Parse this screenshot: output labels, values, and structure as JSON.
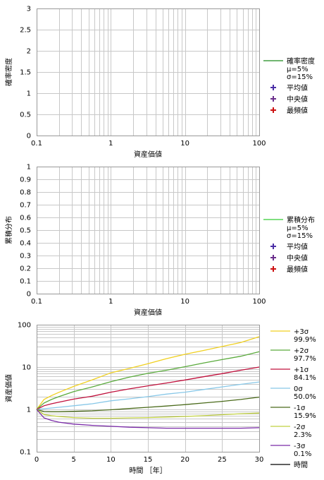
{
  "chart_data": [
    {
      "type": "line",
      "xscale": "log",
      "xlim": [
        0.1,
        100
      ],
      "ylim": [
        0,
        3
      ],
      "xticks": [
        "0.1",
        "1",
        "10",
        "100"
      ],
      "yticks": [
        "0",
        "0.5",
        "1",
        "1.5",
        "2",
        "2.5",
        "3"
      ],
      "xlabel": "資産価値",
      "ylabel": "確率密度",
      "grid": true,
      "legend_position": "right",
      "legend": [
        {
          "kind": "line",
          "color": "#1a8a1a",
          "lines": [
            "確率密度",
            "μ=5%",
            "σ=15%"
          ]
        },
        {
          "kind": "marker",
          "color": "#4b2fa6",
          "lines": [
            "平均値"
          ]
        },
        {
          "kind": "marker",
          "color": "#6b2f8c",
          "lines": [
            "中央値"
          ]
        },
        {
          "kind": "marker",
          "color": "#cc1111",
          "lines": [
            "最頻値"
          ]
        }
      ],
      "series": []
    },
    {
      "type": "line",
      "xscale": "log",
      "xlim": [
        0.1,
        100
      ],
      "ylim": [
        0,
        1
      ],
      "xticks": [
        "0.1",
        "1",
        "10",
        "100"
      ],
      "yticks": [
        "0",
        "0.1",
        "0.2",
        "0.3",
        "0.4",
        "0.5",
        "0.6",
        "0.7",
        "0.8",
        "0.9",
        "1"
      ],
      "xlabel": "資産価値",
      "ylabel": "累積分布",
      "grid": true,
      "legend_position": "right",
      "legend": [
        {
          "kind": "line",
          "color": "#33cc33",
          "lines": [
            "累積分布",
            "μ=5%",
            "σ=15%"
          ]
        },
        {
          "kind": "marker",
          "color": "#4b2fa6",
          "lines": [
            "平均値"
          ]
        },
        {
          "kind": "marker",
          "color": "#6b2f8c",
          "lines": [
            "中央値"
          ]
        },
        {
          "kind": "marker",
          "color": "#cc1111",
          "lines": [
            "最頻値"
          ]
        }
      ],
      "series": []
    },
    {
      "type": "line",
      "yscale": "log",
      "xlim": [
        0,
        30
      ],
      "ylim": [
        0.1,
        100
      ],
      "xticks": [
        "0",
        "5",
        "10",
        "15",
        "20",
        "25",
        "30"
      ],
      "yticks": [
        "0.1",
        "1",
        "10",
        "100"
      ],
      "xlabel": "時間 ［年］",
      "ylabel": "資産価値",
      "grid": true,
      "legend_position": "right",
      "x": [
        0,
        1,
        2,
        3,
        5,
        7.5,
        10,
        12.5,
        15,
        17.5,
        20,
        22.5,
        25,
        27.5,
        30
      ],
      "series": [
        {
          "name": "+3σ",
          "note": "99.9%",
          "color": "#f0d020",
          "values": [
            1.0,
            1.72,
            2.12,
            2.53,
            3.5,
            5.0,
            7.3,
            9.3,
            12.0,
            15.8,
            20.0,
            24.6,
            30.6,
            38.0,
            52.0
          ]
        },
        {
          "name": "+2σ",
          "note": "97.7%",
          "color": "#5aaa3c",
          "values": [
            1.0,
            1.42,
            1.72,
            2.0,
            2.63,
            3.4,
            4.5,
            5.8,
            7.1,
            8.4,
            10.2,
            12.5,
            15.0,
            18.0,
            23.0
          ]
        },
        {
          "name": "+1σ",
          "note": "84.1%",
          "color": "#c0103c",
          "values": [
            1.0,
            1.22,
            1.36,
            1.48,
            1.75,
            2.05,
            2.55,
            3.05,
            3.6,
            4.2,
            4.95,
            5.9,
            7.0,
            8.4,
            10.0
          ]
        },
        {
          "name": "0σ",
          "note": "50.0%",
          "color": "#88c8e8",
          "values": [
            1.0,
            1.04,
            1.08,
            1.12,
            1.22,
            1.36,
            1.6,
            1.78,
            2.0,
            2.3,
            2.55,
            2.95,
            3.4,
            3.9,
            4.45
          ]
        },
        {
          "name": "-1σ",
          "note": "15.9%",
          "color": "#4a6a1a",
          "values": [
            1.0,
            0.89,
            0.88,
            0.88,
            0.9,
            0.93,
            0.98,
            1.05,
            1.12,
            1.2,
            1.3,
            1.42,
            1.55,
            1.72,
            1.95
          ]
        },
        {
          "name": "-2σ",
          "note": "2.3%",
          "color": "#c0d040",
          "values": [
            1.0,
            0.76,
            0.71,
            0.68,
            0.64,
            0.62,
            0.62,
            0.63,
            0.64,
            0.66,
            0.68,
            0.71,
            0.75,
            0.79,
            0.82
          ]
        },
        {
          "name": "-3σ",
          "note": "0.1%",
          "color": "#7a2aa8",
          "values": [
            1.0,
            0.63,
            0.55,
            0.5,
            0.45,
            0.42,
            0.4,
            0.38,
            0.37,
            0.36,
            0.36,
            0.36,
            0.36,
            0.36,
            0.37
          ]
        }
      ],
      "legend_extra": [
        {
          "kind": "line",
          "color": "#000000",
          "lines": [
            "時間"
          ]
        }
      ]
    }
  ]
}
